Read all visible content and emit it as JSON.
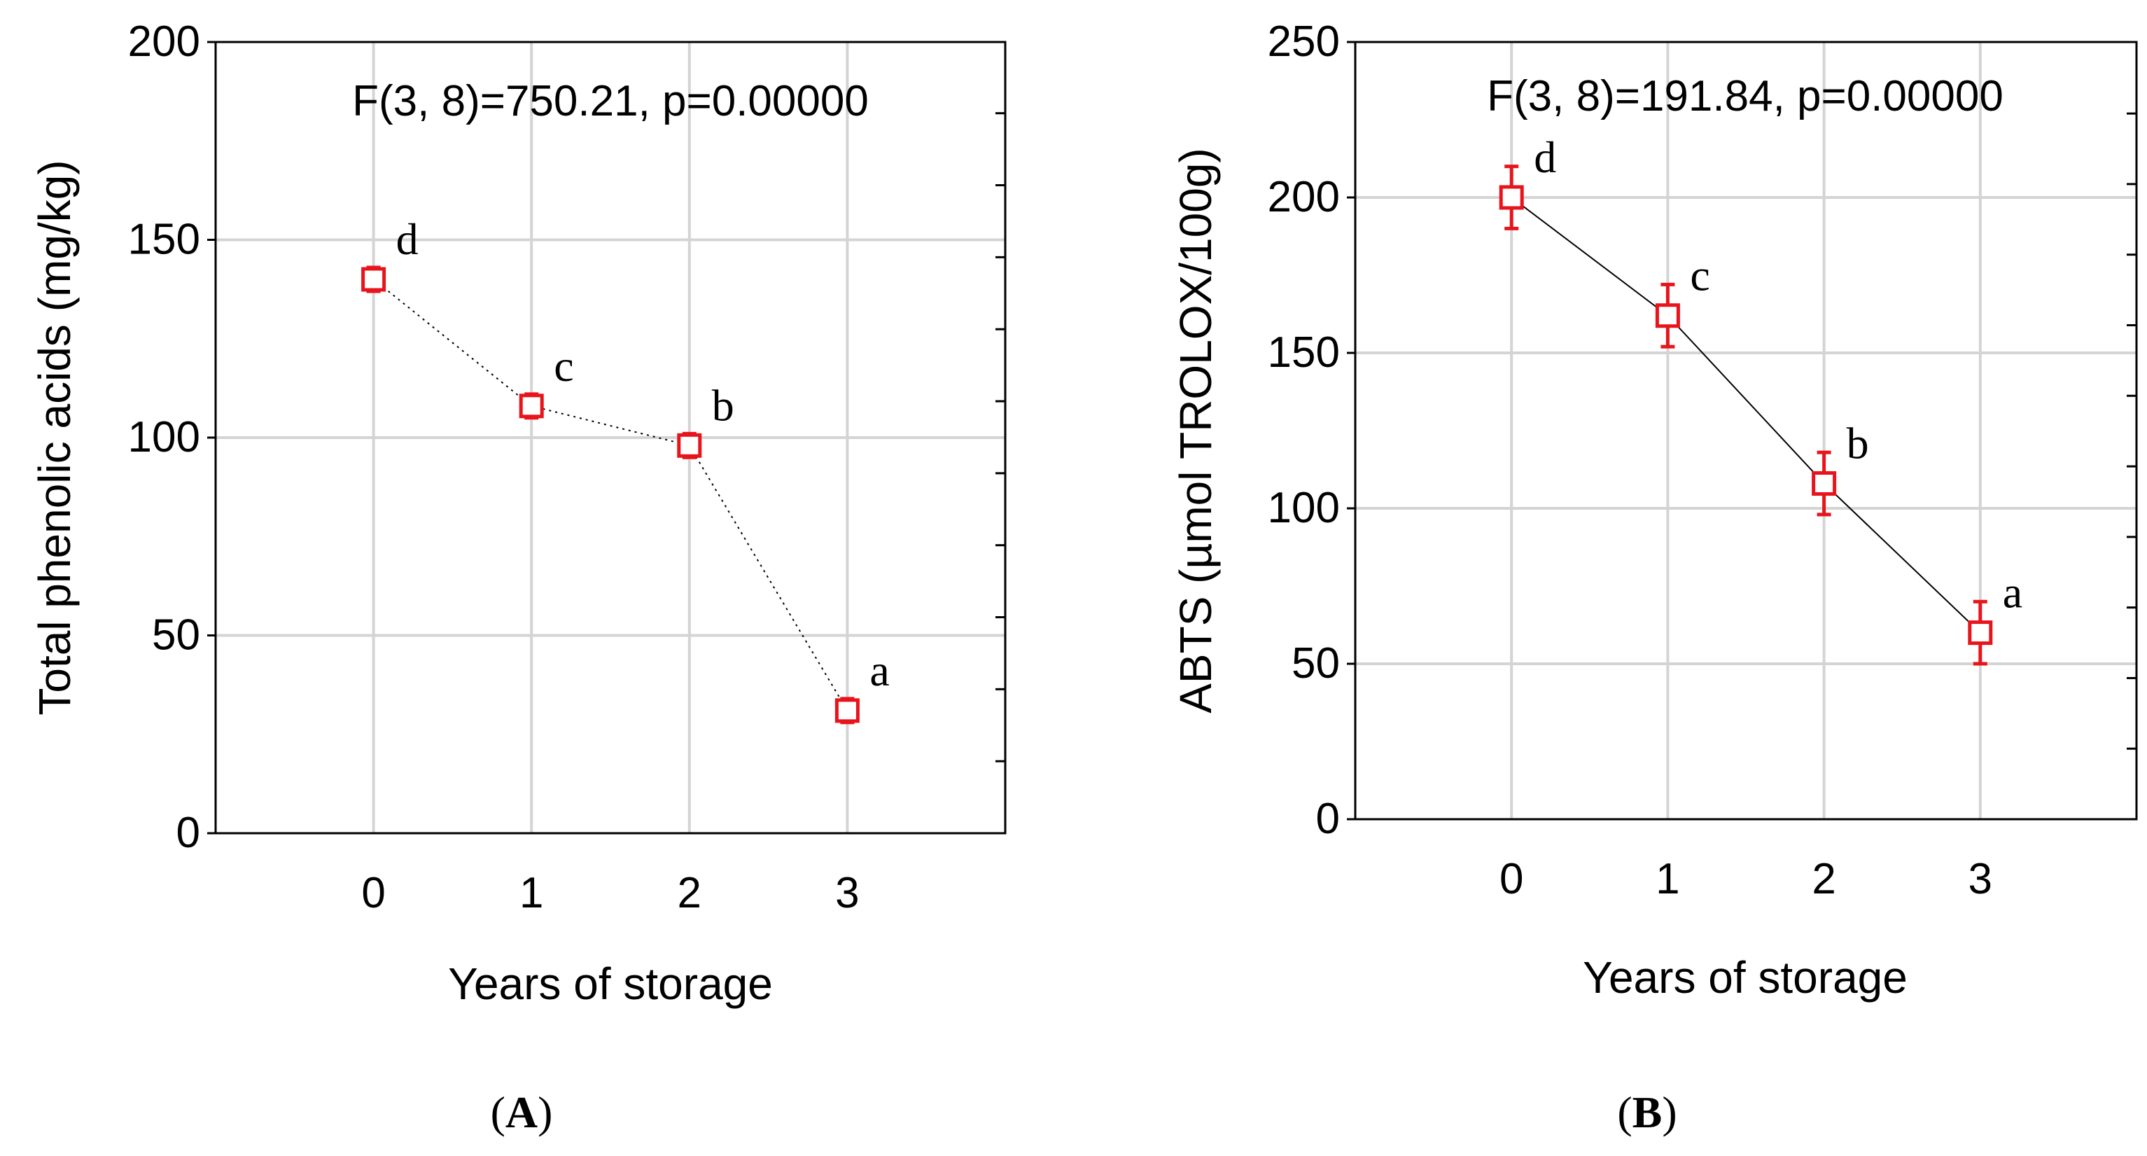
{
  "chart_data": [
    {
      "type": "line",
      "panel_label_open": "(",
      "panel_label_letter": "A",
      "panel_label_close": ")",
      "title": "F(3, 8)=750.21, p=0.00000",
      "xlabel": "Years of storage",
      "ylabel": "Total phenolic acids (mg/kg)",
      "x": [
        0,
        1,
        2,
        3
      ],
      "x_ticks": [
        "0",
        "1",
        "2",
        "3"
      ],
      "xlim": [
        -1,
        4
      ],
      "ylim": [
        0,
        200
      ],
      "y_ticks": [
        "0",
        "50",
        "100",
        "150",
        "200"
      ],
      "y_tick_values": [
        0,
        50,
        100,
        150,
        200
      ],
      "y_minor_ticks": [
        18.2,
        36.4,
        54.6,
        72.8,
        91,
        109.2,
        127.4,
        145.6,
        163.8,
        182
      ],
      "grid": true,
      "line_style": "dotted",
      "series": [
        {
          "name": "Total phenolic acids",
          "values": [
            140,
            108,
            98,
            31
          ],
          "error": [
            3,
            3,
            3,
            3
          ],
          "letters": [
            "d",
            "c",
            "b",
            "a"
          ],
          "marker_color": "#e8141b",
          "line_color": "#000000"
        }
      ]
    },
    {
      "type": "line",
      "panel_label_open": "(",
      "panel_label_letter": "B",
      "panel_label_close": ")",
      "title": "F(3, 8)=191.84, p=0.00000",
      "xlabel": "Years of storage",
      "ylabel": "ABTS (µmol TROLOX/100g)",
      "x": [
        0,
        1,
        2,
        3
      ],
      "x_ticks": [
        "0",
        "1",
        "2",
        "3"
      ],
      "xlim": [
        -1,
        4
      ],
      "ylim": [
        0,
        250
      ],
      "y_ticks": [
        "0",
        "50",
        "100",
        "150",
        "200",
        "250"
      ],
      "y_tick_values": [
        0,
        50,
        100,
        150,
        200,
        250
      ],
      "y_minor_ticks": [
        22.7,
        45.4,
        68.1,
        90.8,
        113.5,
        136.2,
        158.9,
        181.6,
        204.3,
        227
      ],
      "grid": true,
      "line_style": "solid",
      "series": [
        {
          "name": "ABTS",
          "values": [
            200,
            162,
            108,
            60
          ],
          "error": [
            10,
            10,
            10,
            10
          ],
          "letters": [
            "d",
            "c",
            "b",
            "a"
          ],
          "marker_color": "#e8141b",
          "line_color": "#000000"
        }
      ]
    }
  ]
}
